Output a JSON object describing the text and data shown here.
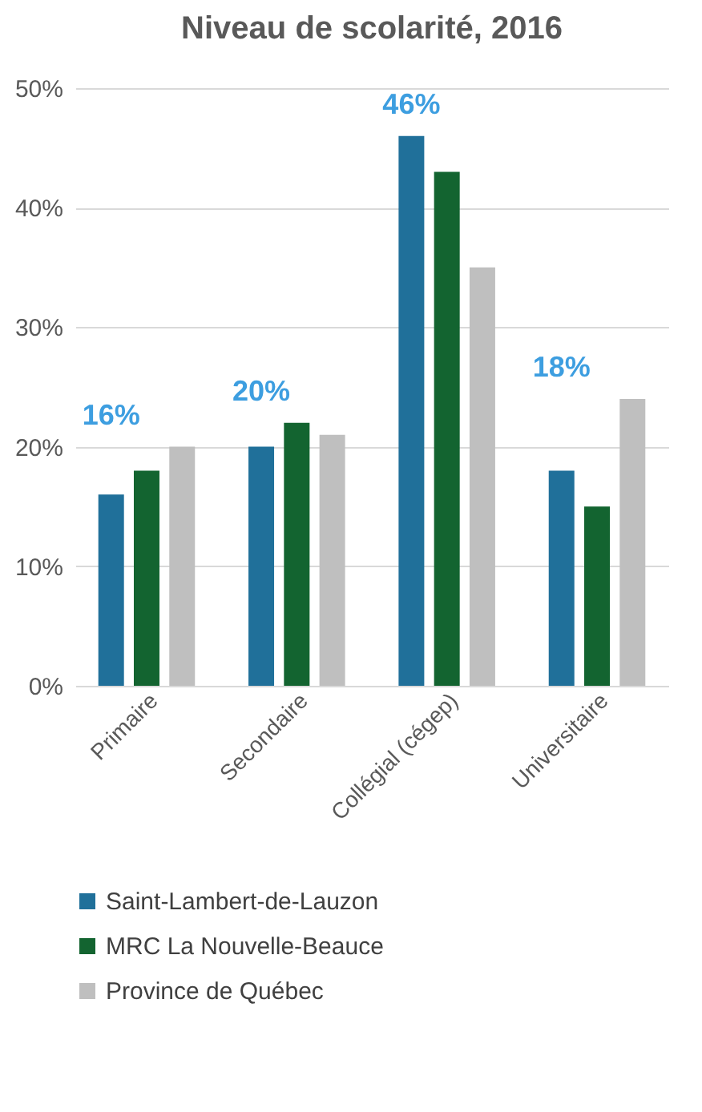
{
  "chart_data": {
    "type": "bar",
    "title": "Niveau de scolarité, 2016",
    "categories": [
      "Primaire",
      "Secondaire",
      "Collégial (cégep)",
      "Universitaire"
    ],
    "series": [
      {
        "name": "Saint-Lambert-de-Lauzon",
        "color": "#20709a",
        "values": [
          16,
          20,
          46,
          18
        ],
        "value_labels": [
          "16%",
          "20%",
          "46%",
          "18%"
        ]
      },
      {
        "name": "MRC La Nouvelle-Beauce",
        "color": "#136430",
        "values": [
          18,
          22,
          43,
          15
        ]
      },
      {
        "name": "Province de Québec",
        "color": "#bfbfbf",
        "values": [
          20,
          21,
          35,
          24
        ]
      }
    ],
    "ylim": [
      0,
      50
    ],
    "yticks": [
      {
        "value": 0,
        "label": "0%"
      },
      {
        "value": 10,
        "label": "10%"
      },
      {
        "value": 20,
        "label": "20%"
      },
      {
        "value": 30,
        "label": "30%"
      },
      {
        "value": 40,
        "label": "40%"
      },
      {
        "value": 50,
        "label": "50%"
      }
    ],
    "grid": "y",
    "legend": "bottom"
  }
}
